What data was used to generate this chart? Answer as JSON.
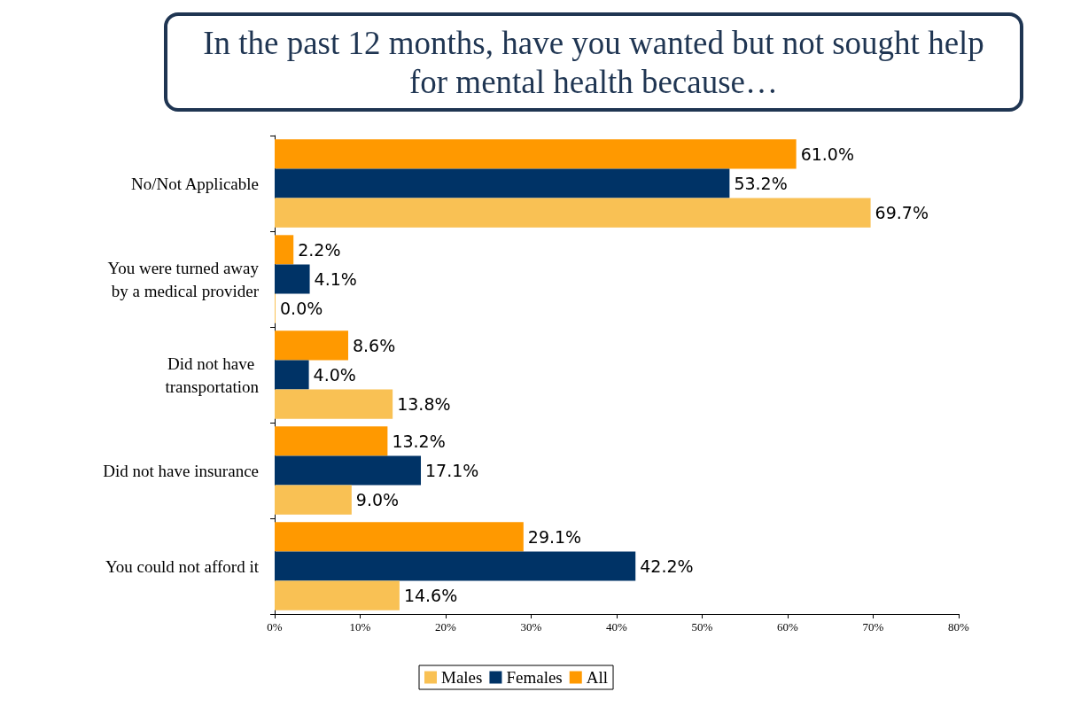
{
  "chart_data": {
    "type": "bar",
    "orientation": "horizontal",
    "title": "In the past 12 months, have you wanted but not sought help\nfor mental health because…",
    "categories": [
      "No/Not Applicable",
      "You were turned away\nby a medical provider",
      "Did not have \ntransportation",
      "Did not have insurance",
      "You could not afford it"
    ],
    "series": [
      {
        "name": "All",
        "color": "#ff9900",
        "values": [
          61.0,
          2.2,
          8.6,
          13.2,
          29.1
        ],
        "value_labels": [
          "61.0%",
          "2.2%",
          "8.6%",
          "13.2%",
          "29.1%"
        ]
      },
      {
        "name": "Females",
        "color": "#003366",
        "values": [
          53.2,
          4.1,
          4.0,
          17.1,
          42.2
        ],
        "value_labels": [
          "53.2%",
          "4.1%",
          "4.0%",
          "17.1%",
          "42.2%"
        ]
      },
      {
        "name": "Males",
        "color": "#f9c154",
        "values": [
          69.7,
          0.0,
          13.8,
          9.0,
          14.6
        ],
        "value_labels": [
          "69.7%",
          "0.0%",
          "13.8%",
          "9.0%",
          "14.6%"
        ]
      }
    ],
    "xlim": [
      0,
      80
    ],
    "xticks": [
      {
        "value": 0,
        "label": "0%"
      },
      {
        "value": 10,
        "label": "10%"
      },
      {
        "value": 20,
        "label": "20%"
      },
      {
        "value": 30,
        "label": "30%"
      },
      {
        "value": 40,
        "label": "40%"
      },
      {
        "value": 50,
        "label": "50%"
      },
      {
        "value": 60,
        "label": "60%"
      },
      {
        "value": 70,
        "label": "70%"
      },
      {
        "value": 80,
        "label": "80%"
      }
    ],
    "legend": "bottom",
    "grid": false
  }
}
